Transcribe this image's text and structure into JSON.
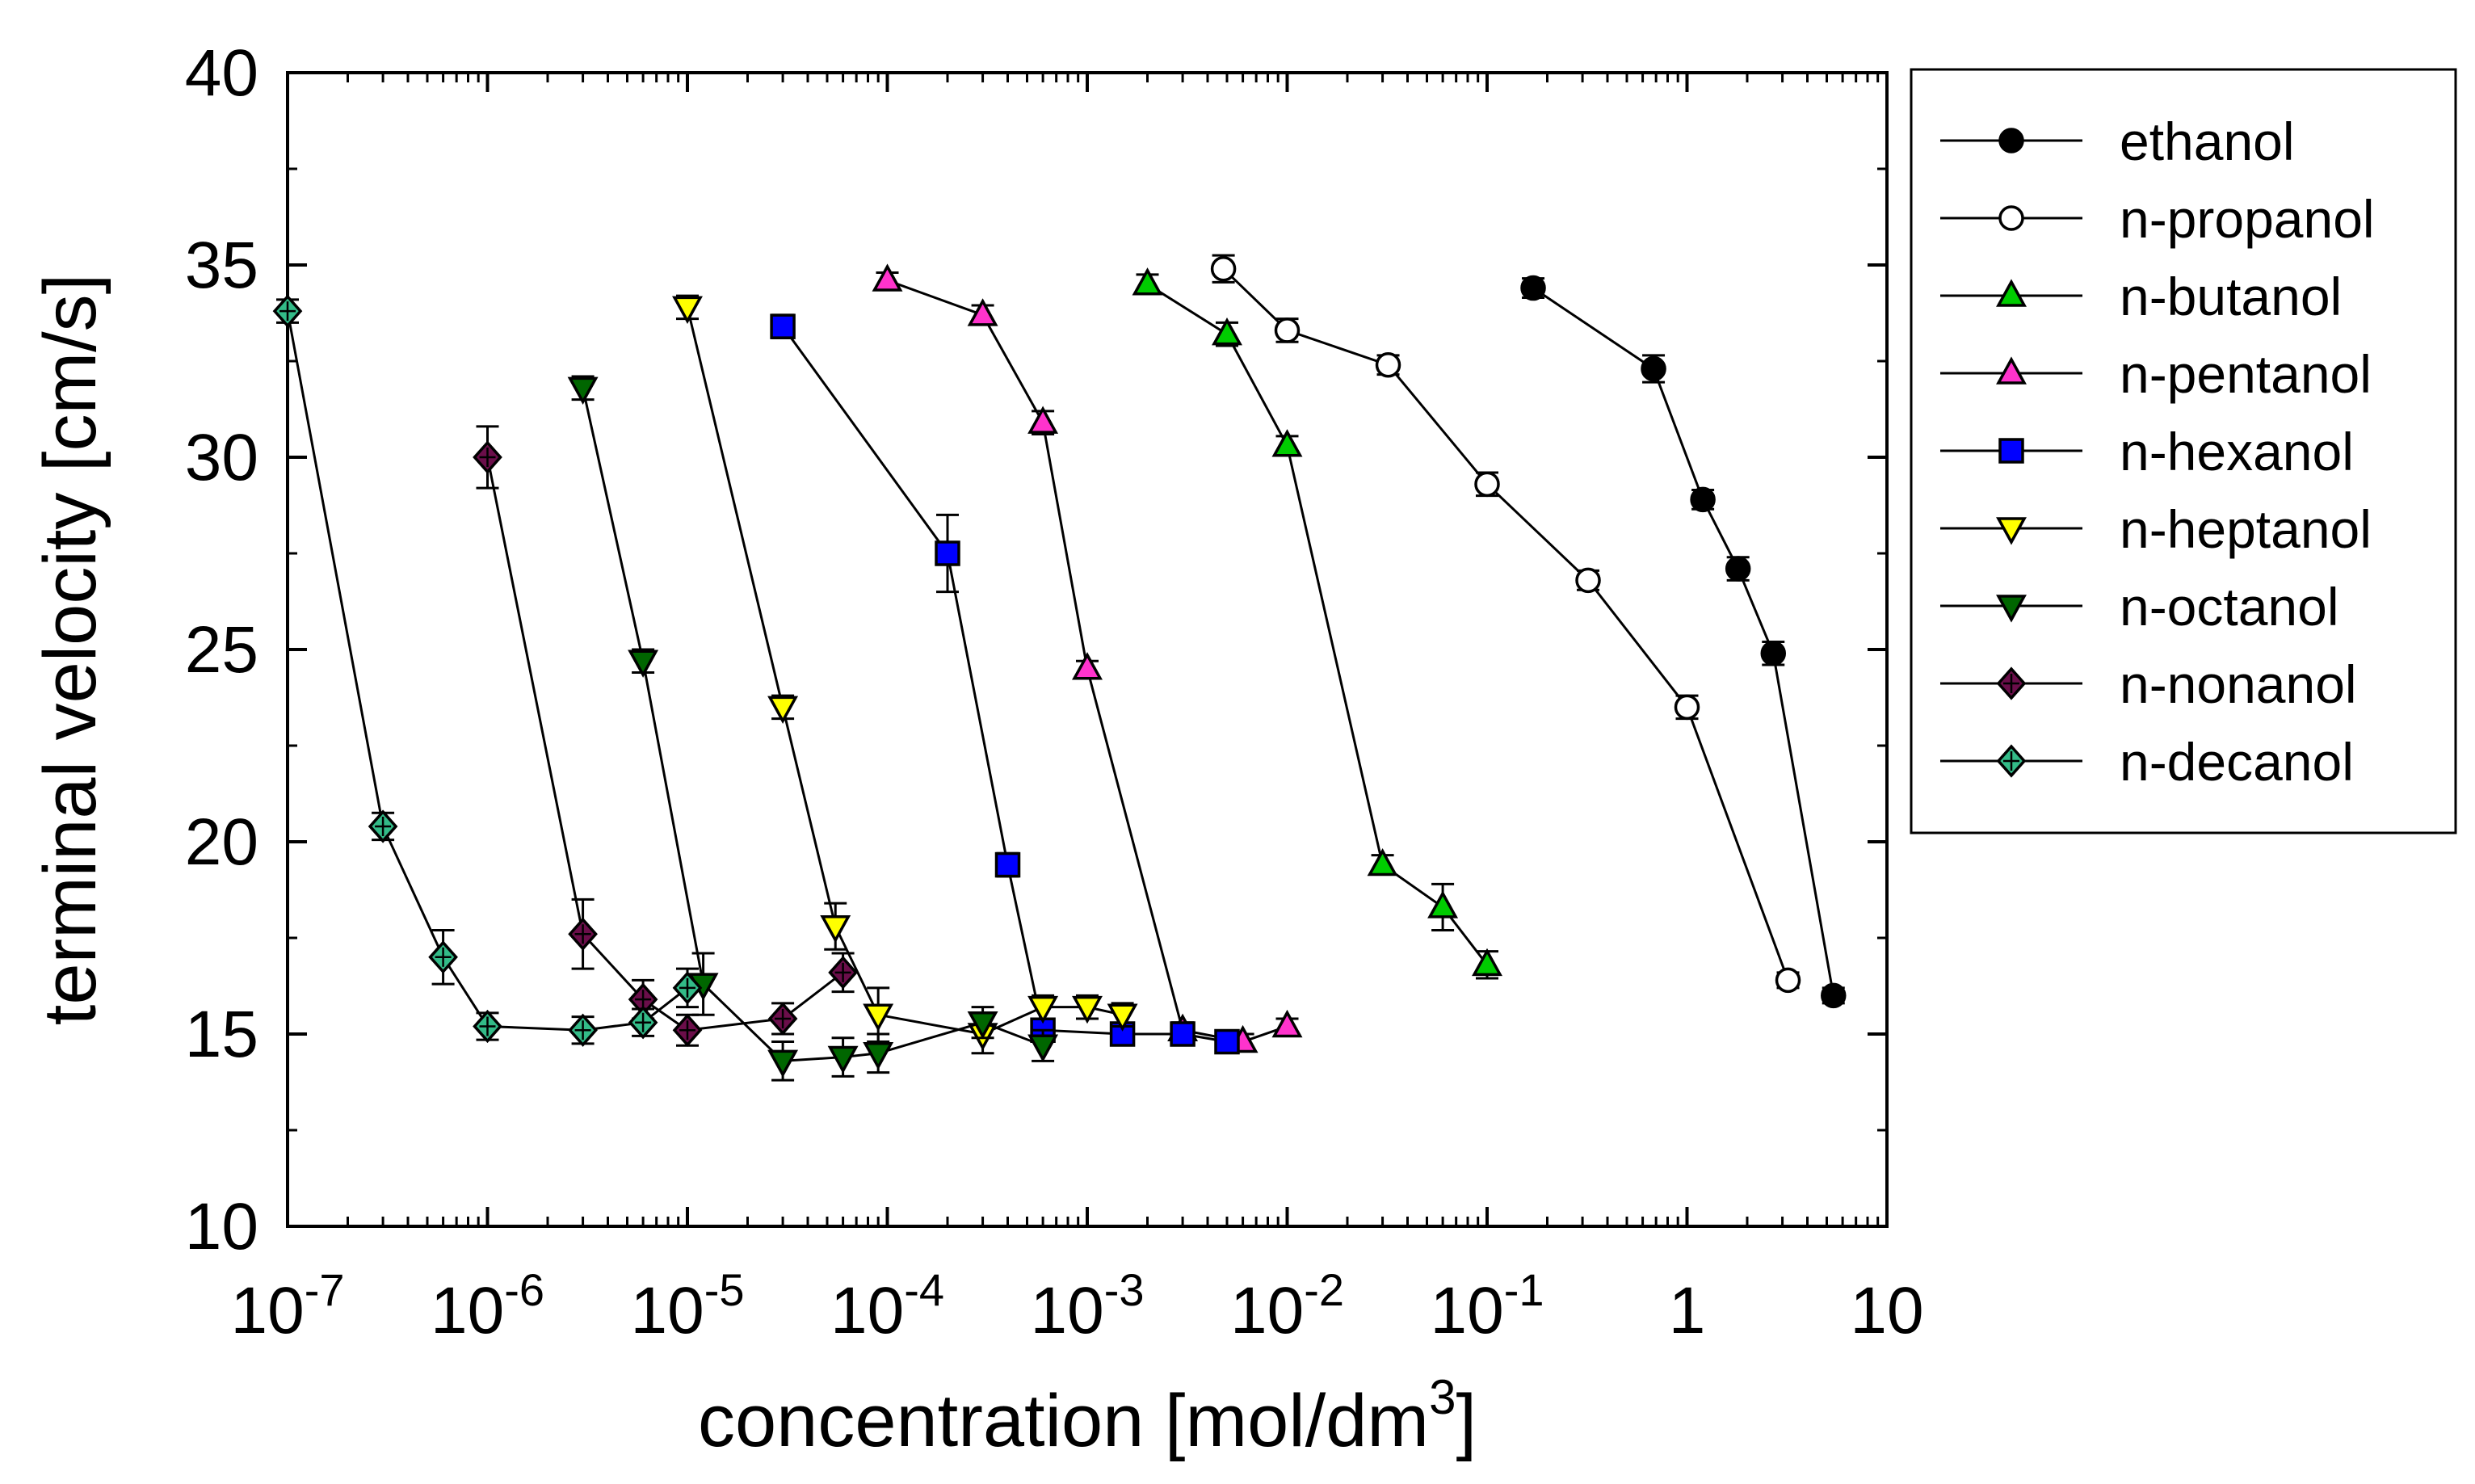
{
  "chart_data": {
    "type": "scatter",
    "x_scale": "log",
    "xlabel": "concentration [mol/dm",
    "xlabel_superscript": "3",
    "xlabel_suffix": "]",
    "ylabel": "terminal velocity [cm/s]",
    "xlim": [
      1e-07,
      10
    ],
    "ylim": [
      10,
      40
    ],
    "y_ticks": [
      10,
      15,
      20,
      25,
      30,
      35,
      40
    ],
    "x_ticks": [
      {
        "value": 1e-07,
        "base": "10",
        "exp": "-7"
      },
      {
        "value": 1e-06,
        "base": "10",
        "exp": "-6"
      },
      {
        "value": 1e-05,
        "base": "10",
        "exp": "-5"
      },
      {
        "value": 0.0001,
        "base": "10",
        "exp": "-4"
      },
      {
        "value": 0.001,
        "base": "10",
        "exp": "-3"
      },
      {
        "value": 0.01,
        "base": "10",
        "exp": "-2"
      },
      {
        "value": 0.1,
        "base": "10",
        "exp": "-1"
      },
      {
        "value": 1,
        "base": "1",
        "exp": ""
      },
      {
        "value": 10,
        "base": "10",
        "exp": ""
      }
    ],
    "legend_position": "right",
    "series": [
      {
        "name": "ethanol",
        "marker": "circle",
        "color": "#000000",
        "x": [
          0.17,
          0.68,
          1.2,
          1.8,
          2.7,
          5.4
        ],
        "y": [
          34.4,
          32.3,
          28.9,
          27.1,
          24.9,
          16.0
        ],
        "err": [
          0.25,
          0.35,
          0.25,
          0.3,
          0.3,
          0.2
        ]
      },
      {
        "name": "n-propanol",
        "marker": "circle",
        "color": "#ffffff",
        "x": [
          0.0048,
          0.01,
          0.032,
          0.1,
          0.32,
          1.0,
          3.2
        ],
        "y": [
          34.9,
          33.3,
          32.4,
          29.3,
          26.8,
          23.5,
          16.4
        ],
        "err": [
          0.35,
          0.3,
          0.25,
          0.3,
          0.25,
          0.3,
          0.2
        ]
      },
      {
        "name": "n-butanol",
        "marker": "triangle-up",
        "color": "#00cc00",
        "x": [
          0.002,
          0.005,
          0.01,
          0.03,
          0.06,
          0.1
        ],
        "y": [
          34.5,
          33.2,
          30.3,
          19.4,
          18.3,
          16.8
        ],
        "err": [
          0.25,
          0.3,
          0.25,
          0.25,
          0.6,
          0.35
        ]
      },
      {
        "name": "n-pentanol",
        "marker": "triangle-up",
        "color": "#ff33cc",
        "x": [
          0.0001,
          0.0003,
          0.0006,
          0.001,
          0.003,
          0.006,
          0.01
        ],
        "y": [
          34.6,
          33.7,
          30.9,
          24.5,
          15.1,
          14.8,
          15.2
        ],
        "err": [
          0.2,
          0.25,
          0.3,
          0.2,
          0.2,
          0.2,
          0.2
        ]
      },
      {
        "name": "n-hexanol",
        "marker": "square",
        "color": "#0000ff",
        "x": [
          3e-05,
          0.0002,
          0.0004,
          0.0006,
          0.0015,
          0.003,
          0.005
        ],
        "y": [
          33.4,
          27.5,
          19.4,
          15.1,
          15.0,
          15.0,
          14.8
        ],
        "err": [
          0.3,
          1.0,
          0.3,
          0.3,
          0.25,
          0.25,
          0.2
        ]
      },
      {
        "name": "n-heptanol",
        "marker": "triangle-down",
        "color": "#ffff00",
        "x": [
          1e-05,
          3e-05,
          5.5e-05,
          9e-05,
          0.0003,
          0.0006,
          0.001,
          0.0015
        ],
        "y": [
          33.9,
          23.5,
          17.8,
          15.5,
          15.0,
          15.7,
          15.7,
          15.5
        ],
        "err": [
          0.3,
          0.3,
          0.6,
          0.7,
          0.5,
          0.3,
          0.3,
          0.3
        ]
      },
      {
        "name": "n-octanol",
        "marker": "triangle-down",
        "color": "#006600",
        "x": [
          3e-06,
          6e-06,
          1.2e-05,
          3e-05,
          6e-05,
          9e-05,
          0.0003,
          0.0006
        ],
        "y": [
          31.8,
          24.7,
          16.3,
          14.3,
          14.4,
          14.5,
          15.3,
          14.7
        ],
        "err": [
          0.3,
          0.3,
          0.8,
          0.5,
          0.5,
          0.5,
          0.4,
          0.4
        ]
      },
      {
        "name": "n-nonanol",
        "marker": "diamond",
        "color": "#6b0e4a",
        "x": [
          1e-06,
          3e-06,
          6e-06,
          1e-05,
          3e-05,
          6e-05
        ],
        "y": [
          30.0,
          17.6,
          15.9,
          15.1,
          15.4,
          16.6
        ],
        "err": [
          0.8,
          0.9,
          0.5,
          0.4,
          0.4,
          0.5
        ]
      },
      {
        "name": "n-decanol",
        "marker": "diamond",
        "color": "#33bb88",
        "x": [
          1e-07,
          3e-07,
          6e-07,
          1e-06,
          3e-06,
          6e-06,
          1e-05
        ],
        "y": [
          33.8,
          20.4,
          17.0,
          15.2,
          15.1,
          15.3,
          16.2
        ],
        "err": [
          0.3,
          0.35,
          0.7,
          0.35,
          0.35,
          0.35,
          0.5
        ]
      }
    ]
  }
}
